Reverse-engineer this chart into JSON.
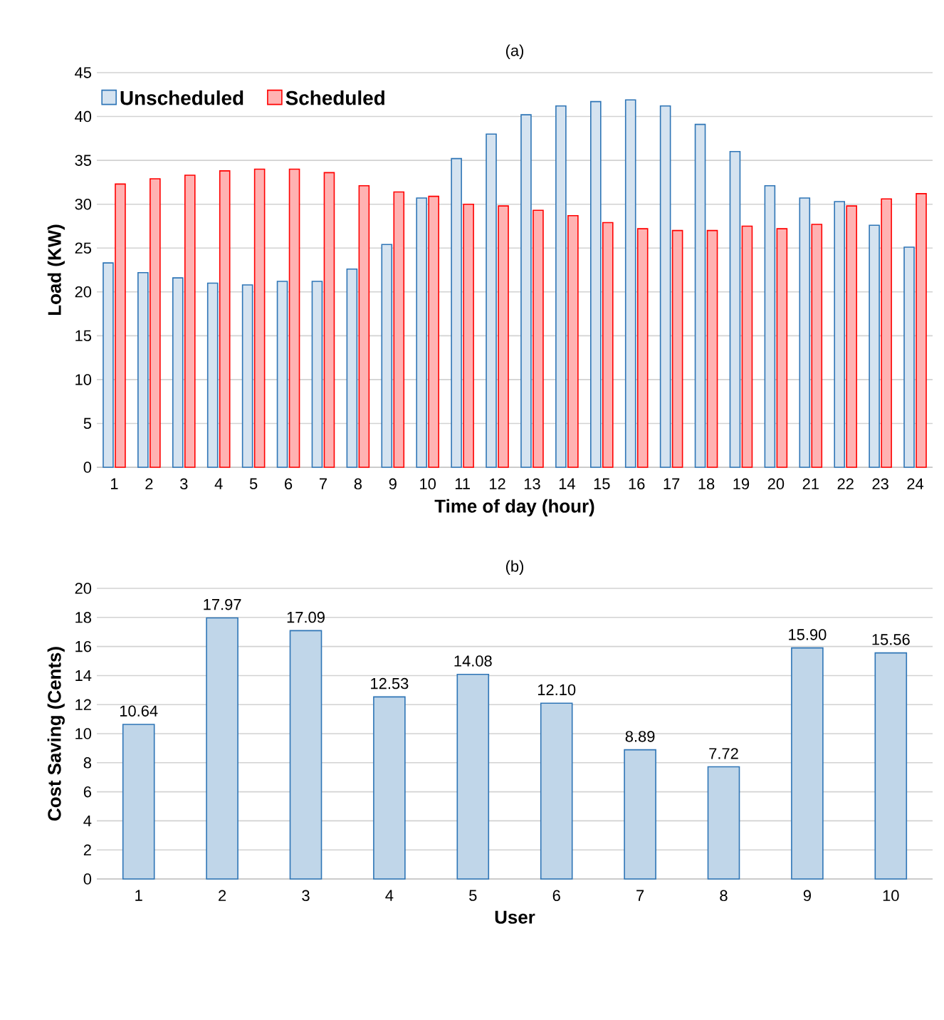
{
  "chart_data": [
    {
      "type": "bar",
      "title": "(a)",
      "xlabel": "Time of day (hour)",
      "ylabel": "Load (KW)",
      "categories": [
        "1",
        "2",
        "3",
        "4",
        "5",
        "6",
        "7",
        "8",
        "9",
        "10",
        "11",
        "12",
        "13",
        "14",
        "15",
        "16",
        "17",
        "18",
        "19",
        "20",
        "21",
        "22",
        "23",
        "24"
      ],
      "series": [
        {
          "name": "Unscheduled",
          "color": "#2e75b6",
          "values": [
            23.3,
            22.2,
            21.6,
            21.0,
            20.8,
            21.2,
            21.2,
            22.6,
            25.4,
            30.7,
            35.2,
            38.0,
            40.2,
            41.2,
            41.7,
            41.9,
            41.2,
            39.1,
            36.0,
            32.1,
            30.7,
            30.3,
            27.6,
            25.1
          ]
        },
        {
          "name": "Scheduled",
          "color": "#ff0000",
          "values": [
            32.3,
            32.9,
            33.3,
            33.8,
            34.0,
            34.0,
            33.6,
            32.1,
            31.4,
            30.9,
            30.0,
            29.8,
            29.3,
            28.7,
            27.9,
            27.2,
            27.0,
            27.0,
            27.5,
            27.2,
            27.7,
            29.8,
            30.6,
            31.2
          ]
        }
      ],
      "ylim": [
        0,
        45
      ],
      "yticks": [
        0,
        5,
        10,
        15,
        20,
        25,
        30,
        35,
        40,
        45
      ],
      "grid": "y",
      "legend": "top left"
    },
    {
      "type": "bar",
      "title": "(b)",
      "xlabel": "User",
      "ylabel": "Cost Saving (Cents)",
      "categories": [
        "1",
        "2",
        "3",
        "4",
        "5",
        "6",
        "7",
        "8",
        "9",
        "10"
      ],
      "series": [
        {
          "color": "#2e75b6",
          "values": [
            10.64,
            17.97,
            17.09,
            12.53,
            14.08,
            12.1,
            8.89,
            7.72,
            15.9,
            15.56
          ],
          "value_labels": [
            "10.64",
            "17.97",
            "17.09",
            "12.53",
            "14.08",
            "12.10",
            "8.89",
            "7.72",
            "15.90",
            "15.56"
          ]
        }
      ],
      "ylim": [
        0,
        20
      ],
      "yticks": [
        0,
        2,
        4,
        6,
        8,
        10,
        12,
        14,
        16,
        18,
        20
      ],
      "grid": "y"
    }
  ]
}
